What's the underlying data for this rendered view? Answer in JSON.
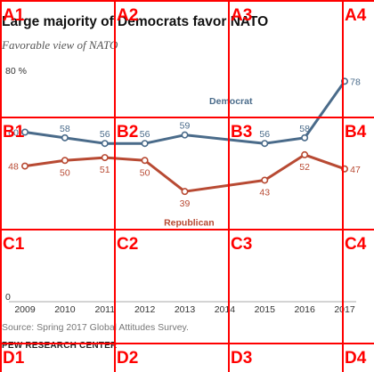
{
  "title": "Large majority of Democrats favor NATO",
  "subtitle": "Favorable view of NATO",
  "source": "Source: Spring 2017 Global Attitudes Survey.",
  "organization": "PEW RESEARCH CENTER",
  "chart_data": {
    "type": "line",
    "title": "Large majority of Democrats favor NATO",
    "subtitle": "Favorable view of NATO",
    "xlabel": "",
    "ylabel": "",
    "x": [
      2009,
      2010,
      2011,
      2012,
      2013,
      2014,
      2015,
      2016,
      2017
    ],
    "x_ticks": [
      "2009",
      "2010",
      "2011",
      "2012",
      "2013",
      "2014",
      "2015",
      "2016",
      "2017"
    ],
    "y_ticks": [
      {
        "value": 80,
        "label": "80 %"
      },
      {
        "value": 0,
        "label": "0"
      }
    ],
    "ylim": [
      0,
      80
    ],
    "grid": false,
    "legend": "inline labels on lines",
    "series": [
      {
        "name": "Democrat",
        "color": "#4a6b8a",
        "x": [
          2009,
          2010,
          2011,
          2012,
          2013,
          2015,
          2016,
          2017
        ],
        "values": [
          60,
          58,
          56,
          56,
          59,
          56,
          58,
          78
        ],
        "labels": [
          "60",
          "58",
          "56",
          "56",
          "59",
          "56",
          "58",
          "78"
        ]
      },
      {
        "name": "Republican",
        "color": "#b84a33",
        "x": [
          2009,
          2010,
          2011,
          2012,
          2013,
          2015,
          2016,
          2017
        ],
        "values": [
          48,
          50,
          51,
          50,
          39,
          43,
          52,
          47
        ],
        "labels": [
          "48",
          "50",
          "51",
          "50",
          "39",
          "43",
          "52",
          "47"
        ]
      }
    ]
  },
  "grid_overlay": {
    "color": "#ff0000",
    "rows": [
      "A",
      "B",
      "C",
      "D"
    ],
    "cols": [
      "1",
      "2",
      "3",
      "4"
    ]
  }
}
